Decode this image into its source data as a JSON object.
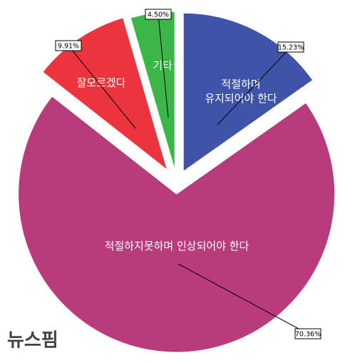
{
  "chart_data": {
    "type": "pie",
    "categories": [
      "적절하며\n유지되어야 한다",
      "적절하지못하며 인상되어야 한다",
      "잘모르겠다",
      "기타"
    ],
    "values": [
      15.23,
      70.36,
      9.91,
      4.5
    ],
    "value_labels": [
      "15.23%",
      "70.36%",
      "9.91%",
      "4.50%"
    ],
    "colors": [
      "#3f54a8",
      "#b83b7b",
      "#ec343e",
      "#3cb649"
    ],
    "start_angle": 0,
    "direction": "clockwise"
  },
  "watermark": "뉴스핌"
}
